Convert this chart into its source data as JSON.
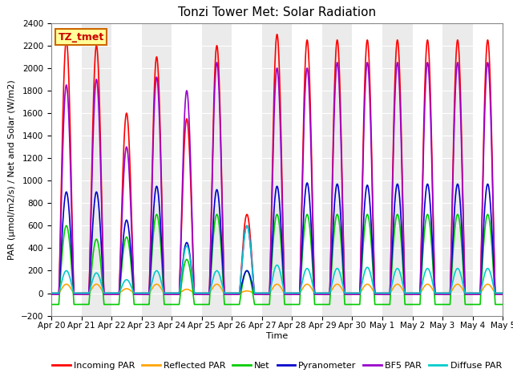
{
  "title": "Tonzi Tower Met: Solar Radiation",
  "xlabel": "Time",
  "ylabel": "PAR (μmol/m2/s) / Net and Solar (W/m2)",
  "ylim": [
    -200,
    2400
  ],
  "yticks": [
    -200,
    0,
    200,
    400,
    600,
    800,
    1000,
    1200,
    1400,
    1600,
    1800,
    2000,
    2200,
    2400
  ],
  "num_days": 15,
  "xtick_labels": [
    "Apr 20",
    "Apr 21",
    "Apr 22",
    "Apr 23",
    "Apr 24",
    "Apr 25",
    "Apr 26",
    "Apr 27",
    "Apr 28",
    "Apr 29",
    "Apr 30",
    "May 1",
    "May 2",
    "May 3",
    "May 4",
    "May 5"
  ],
  "label_box_text": "TZ_tmet",
  "label_box_facecolor": "#FFFF99",
  "label_box_edgecolor": "#CC6600",
  "label_box_textcolor": "#CC0000",
  "background_color": "#FFFFFF",
  "plot_bg_color": "#FFFFFF",
  "band_odd_color": "#EBEBEB",
  "band_even_color": "#FFFFFF",
  "grid_color": "#FFFFFF",
  "series": [
    {
      "name": "Incoming PAR",
      "color": "#FF0000",
      "lw": 1.2,
      "peaks": [
        2250,
        2200,
        1600,
        2100,
        1550,
        2200,
        700,
        2300,
        2250,
        2250,
        2250,
        2250,
        2250,
        2250,
        2250
      ],
      "night_val": -10,
      "type": "par"
    },
    {
      "name": "Reflected PAR",
      "color": "#FFA500",
      "lw": 1.2,
      "peaks": [
        80,
        80,
        40,
        80,
        35,
        80,
        20,
        80,
        80,
        80,
        80,
        80,
        80,
        80,
        80
      ],
      "night_val": 0,
      "type": "par"
    },
    {
      "name": "Net",
      "color": "#00CC00",
      "lw": 1.2,
      "day_peaks": [
        600,
        480,
        500,
        700,
        300,
        700,
        200,
        700,
        700,
        700,
        700,
        700,
        700,
        700,
        700
      ],
      "night_val": -100,
      "type": "net"
    },
    {
      "name": "Pyranometer",
      "color": "#0000CC",
      "lw": 1.2,
      "peaks": [
        900,
        900,
        650,
        950,
        450,
        920,
        200,
        950,
        980,
        970,
        960,
        970,
        970,
        970,
        970
      ],
      "night_val": 0,
      "type": "par"
    },
    {
      "name": "BF5 PAR",
      "color": "#9900CC",
      "lw": 1.2,
      "peaks": [
        1850,
        1900,
        1300,
        1920,
        1800,
        2050,
        600,
        2000,
        2000,
        2050,
        2050,
        2050,
        2050,
        2050,
        2050
      ],
      "night_val": -10,
      "type": "par"
    },
    {
      "name": "Diffuse PAR",
      "color": "#00CCCC",
      "lw": 1.2,
      "peaks": [
        200,
        180,
        120,
        200,
        420,
        200,
        600,
        250,
        220,
        220,
        230,
        220,
        220,
        220,
        220
      ],
      "night_val": 0,
      "type": "par"
    }
  ],
  "title_fontsize": 11,
  "axis_fontsize": 8,
  "tick_fontsize": 7.5,
  "legend_fontsize": 8
}
